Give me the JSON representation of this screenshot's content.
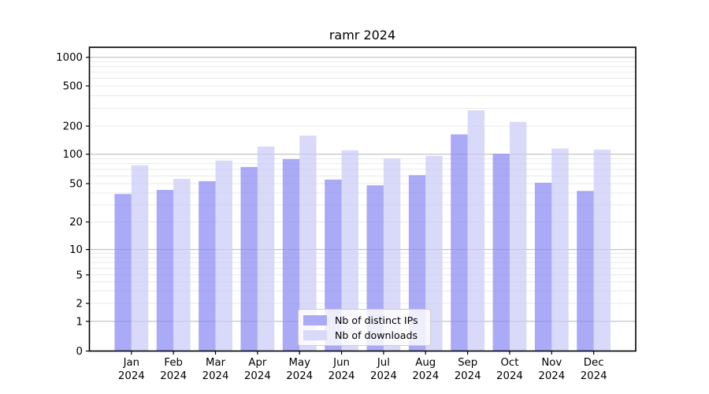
{
  "figure": {
    "title": "ramr 2024"
  },
  "legend": {
    "items": [
      {
        "label": "Nb of distinct IPs",
        "color": "#aaaaf6"
      },
      {
        "label": "Nb of downloads",
        "color": "#d9d9f9"
      }
    ]
  },
  "chart_data": {
    "type": "bar",
    "title": "ramr 2024",
    "yscale": "symlog",
    "xlabel": "",
    "ylabel": "",
    "categories": [
      "Jan",
      "Feb",
      "Mar",
      "Apr",
      "May",
      "Jun",
      "Jul",
      "Aug",
      "Sep",
      "Oct",
      "Nov",
      "Dec"
    ],
    "x_tick_line2": "2024",
    "series": [
      {
        "name": "Nb of distinct IPs",
        "values": [
          39,
          43,
          53,
          74,
          89,
          55,
          48,
          61,
          163,
          101,
          51,
          42
        ],
        "fill": "rgba(137,137,242,0.72)",
        "legend_color": "#aaaaf6"
      },
      {
        "name": "Nb of downloads",
        "values": [
          77,
          56,
          86,
          121,
          158,
          110,
          90,
          96,
          286,
          220,
          115,
          112
        ],
        "fill": "rgba(202,202,247,0.72)",
        "legend_color": "#d9d9f9"
      }
    ],
    "y_ticks": [
      1000,
      500,
      200,
      100,
      50,
      20,
      10,
      5,
      2,
      1,
      0
    ],
    "ylim": [
      0,
      1270
    ],
    "grid": {
      "major_values": [
        1,
        10,
        100,
        1000
      ],
      "minor_values": [
        2,
        3,
        4,
        5,
        6,
        7,
        8,
        9,
        20,
        30,
        40,
        50,
        60,
        70,
        80,
        90,
        200,
        300,
        400,
        500,
        600,
        700,
        800,
        900
      ],
      "major_color": "#b6b6b6",
      "minor_color": "#e9e9e9"
    },
    "legend_position": "lower center"
  }
}
